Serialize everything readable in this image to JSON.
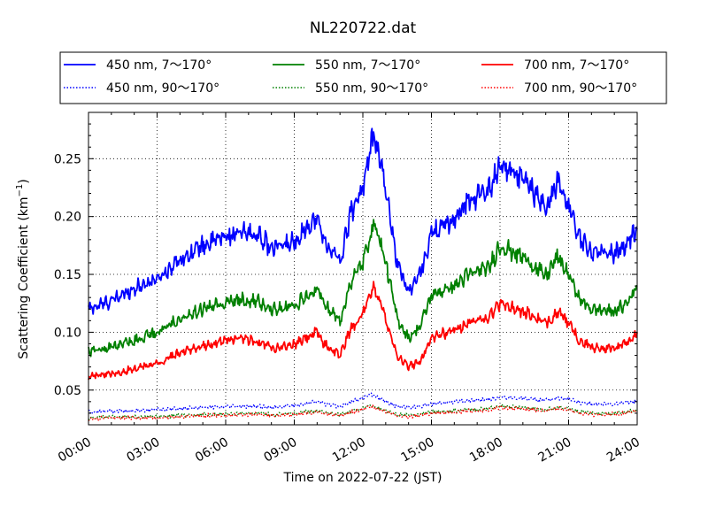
{
  "chart_data": {
    "type": "line",
    "title": "NL220722.dat",
    "xlabel": "Time on 2022-07-22 (JST)",
    "ylabel": "Scattering Coefficient (km",
    "ylabel_sup": "−1",
    "ylabel_close": ")",
    "xlim": [
      "2022-07-22 00:00",
      "2022-07-23 00:00"
    ],
    "ylim": [
      0.02,
      0.29
    ],
    "x_ticks": [
      "00:00",
      "03:00",
      "06:00",
      "09:00",
      "12:00",
      "15:00",
      "18:00",
      "21:00",
      "24:00"
    ],
    "y_ticks": [
      "0.05",
      "0.10",
      "0.15",
      "0.20",
      "0.25"
    ],
    "y_tick_values": [
      0.05,
      0.1,
      0.15,
      0.2,
      0.25
    ],
    "grid": true,
    "legend_placement": "top",
    "x_hours": [
      0,
      1,
      2,
      3,
      4,
      5,
      6,
      7,
      7.5,
      8,
      9,
      9.5,
      10,
      10.3,
      11,
      11.5,
      12,
      12.3,
      12.5,
      13,
      13.5,
      14,
      14.5,
      15,
      16,
      16.5,
      17,
      17.5,
      18,
      19,
      19.5,
      20,
      20.5,
      21,
      21.5,
      22,
      23,
      23.5,
      24
    ],
    "series": [
      {
        "name": "450 nm, 7～170°",
        "color": "#0000ff",
        "style": "solid",
        "values": [
          0.12,
          0.127,
          0.138,
          0.146,
          0.163,
          0.175,
          0.183,
          0.186,
          0.183,
          0.172,
          0.178,
          0.19,
          0.198,
          0.18,
          0.16,
          0.205,
          0.225,
          0.255,
          0.27,
          0.225,
          0.16,
          0.135,
          0.15,
          0.185,
          0.198,
          0.212,
          0.218,
          0.222,
          0.245,
          0.232,
          0.22,
          0.205,
          0.23,
          0.21,
          0.18,
          0.17,
          0.168,
          0.175,
          0.19
        ]
      },
      {
        "name": "450 nm, 90～170°",
        "color": "#0000ff",
        "style": "dotted",
        "values": [
          0.031,
          0.032,
          0.032,
          0.033,
          0.034,
          0.035,
          0.036,
          0.036,
          0.036,
          0.035,
          0.037,
          0.038,
          0.04,
          0.038,
          0.036,
          0.04,
          0.043,
          0.046,
          0.045,
          0.04,
          0.036,
          0.035,
          0.036,
          0.038,
          0.04,
          0.041,
          0.041,
          0.042,
          0.044,
          0.043,
          0.042,
          0.041,
          0.043,
          0.042,
          0.039,
          0.038,
          0.038,
          0.039,
          0.041
        ]
      },
      {
        "name": "550 nm, 7～170°",
        "color": "#008000",
        "style": "solid",
        "values": [
          0.083,
          0.087,
          0.093,
          0.1,
          0.112,
          0.12,
          0.126,
          0.128,
          0.126,
          0.119,
          0.123,
          0.13,
          0.14,
          0.124,
          0.11,
          0.145,
          0.16,
          0.182,
          0.196,
          0.16,
          0.112,
          0.095,
          0.105,
          0.132,
          0.14,
          0.148,
          0.153,
          0.155,
          0.175,
          0.165,
          0.157,
          0.148,
          0.165,
          0.15,
          0.128,
          0.12,
          0.118,
          0.124,
          0.14
        ]
      },
      {
        "name": "550 nm, 90～170°",
        "color": "#008000",
        "style": "dotted",
        "values": [
          0.026,
          0.027,
          0.027,
          0.027,
          0.028,
          0.029,
          0.029,
          0.03,
          0.03,
          0.029,
          0.03,
          0.031,
          0.032,
          0.031,
          0.029,
          0.032,
          0.034,
          0.037,
          0.036,
          0.032,
          0.029,
          0.028,
          0.029,
          0.031,
          0.032,
          0.033,
          0.033,
          0.034,
          0.036,
          0.035,
          0.034,
          0.033,
          0.035,
          0.034,
          0.031,
          0.03,
          0.03,
          0.031,
          0.033
        ]
      },
      {
        "name": "700 nm, 7～170°",
        "color": "#ff0000",
        "style": "solid",
        "values": [
          0.062,
          0.064,
          0.069,
          0.073,
          0.082,
          0.088,
          0.093,
          0.094,
          0.092,
          0.087,
          0.089,
          0.095,
          0.1,
          0.09,
          0.08,
          0.104,
          0.115,
          0.13,
          0.14,
          0.112,
          0.08,
          0.07,
          0.075,
          0.095,
          0.102,
          0.107,
          0.111,
          0.113,
          0.125,
          0.118,
          0.113,
          0.107,
          0.118,
          0.107,
          0.092,
          0.087,
          0.086,
          0.09,
          0.1
        ]
      },
      {
        "name": "700 nm, 90～170°",
        "color": "#ff0000",
        "style": "dotted",
        "values": [
          0.025,
          0.026,
          0.026,
          0.026,
          0.027,
          0.028,
          0.028,
          0.029,
          0.029,
          0.028,
          0.029,
          0.03,
          0.031,
          0.03,
          0.028,
          0.031,
          0.033,
          0.036,
          0.035,
          0.031,
          0.028,
          0.027,
          0.028,
          0.03,
          0.031,
          0.032,
          0.032,
          0.033,
          0.035,
          0.034,
          0.033,
          0.032,
          0.034,
          0.033,
          0.03,
          0.029,
          0.029,
          0.03,
          0.032
        ]
      }
    ]
  }
}
